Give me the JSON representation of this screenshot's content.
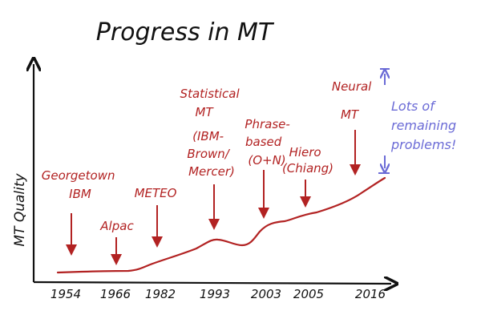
{
  "title": "Progress in MT",
  "y_axis_label": "MT Quality",
  "colors": {
    "ink": "#111111",
    "milestone": "#b22222",
    "curve": "#b22222",
    "note": "#6b6bd6"
  },
  "years": [
    "1954",
    "1966",
    "1982",
    "1993",
    "2003",
    "2005",
    "2016"
  ],
  "milestones": [
    {
      "id": "georgetown",
      "lines": [
        "Georgetown",
        "IBM"
      ]
    },
    {
      "id": "alpac",
      "lines": [
        "Alpac"
      ]
    },
    {
      "id": "meteo",
      "lines": [
        "METEO"
      ]
    },
    {
      "id": "statistical",
      "lines": [
        "Statistical",
        "MT",
        "(IBM-",
        "Brown/",
        "Mercer)"
      ]
    },
    {
      "id": "phrase",
      "lines": [
        "Phrase-",
        "based",
        "(O+N)"
      ]
    },
    {
      "id": "hiero",
      "lines": [
        "Hiero",
        "(Chiang)"
      ]
    },
    {
      "id": "neural",
      "lines": [
        "Neural",
        "MT"
      ]
    }
  ],
  "note": {
    "lines": [
      "Lots of",
      "remaining",
      "problems!"
    ]
  }
}
